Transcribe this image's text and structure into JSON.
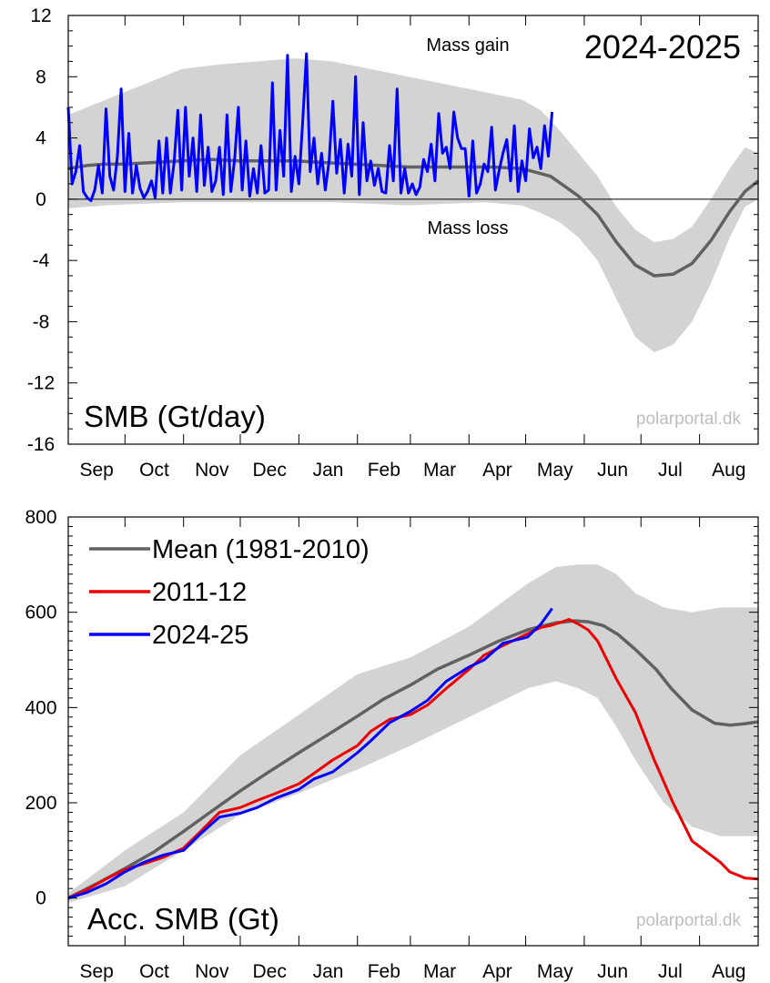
{
  "colors": {
    "band": "#d3d3d3",
    "mean": "#616161",
    "current": "#0000ff",
    "reference": "#ee0000",
    "zero_line": "#000000",
    "watermark": "#bdbdbd"
  },
  "top_panel": {
    "season": "2024-2025",
    "panel_label": "SMB (Gt/day)",
    "gain_label": "Mass gain",
    "loss_label": "Mass loss",
    "watermark": "polarportal.dk"
  },
  "bottom_panel": {
    "panel_label": "Acc. SMB (Gt)",
    "watermark": "polarportal.dk",
    "legend": [
      {
        "label": "Mean (1981-2010)",
        "color": "#616161"
      },
      {
        "label": "2011-12",
        "color": "#ee0000"
      },
      {
        "label": "2024-25",
        "color": "#0000ff"
      }
    ]
  },
  "chart_data": [
    {
      "type": "line",
      "title": "SMB (Gt/day)",
      "season": "2024-2025",
      "x_unit": "day of season (1 Sep = 0)",
      "xlim": [
        0,
        365
      ],
      "month_labels": [
        "Sep",
        "Oct",
        "Nov",
        "Dec",
        "Jan",
        "Feb",
        "Mar",
        "Apr",
        "May",
        "Jun",
        "Jul",
        "Aug"
      ],
      "ylim": [
        -16,
        12
      ],
      "yticks": [
        -16,
        -12,
        -8,
        -4,
        0,
        4,
        8,
        12
      ],
      "zero_line": true,
      "series": [
        {
          "name": "Mean (1981-2010)",
          "x": [
            0,
            10,
            20,
            30,
            45,
            60,
            75,
            90,
            105,
            120,
            135,
            150,
            165,
            180,
            195,
            210,
            225,
            240,
            255,
            262,
            270,
            280,
            290,
            300,
            310,
            320,
            330,
            340,
            350,
            358,
            365
          ],
          "y": [
            2.0,
            2.2,
            2.3,
            2.3,
            2.4,
            2.5,
            2.6,
            2.5,
            2.5,
            2.5,
            2.4,
            2.3,
            2.2,
            2.1,
            2.1,
            2.1,
            2.1,
            2.0,
            1.5,
            0.9,
            0.2,
            -1.0,
            -2.8,
            -4.3,
            -5.0,
            -4.9,
            -4.2,
            -2.7,
            -0.8,
            0.5,
            1.2
          ]
        },
        {
          "name": "2024-25",
          "x": [
            0,
            2,
            4,
            6,
            8,
            10,
            12,
            14,
            16,
            18,
            20,
            22,
            24,
            26,
            28,
            30,
            32,
            34,
            36,
            38,
            40,
            42,
            44,
            46,
            48,
            50,
            52,
            54,
            56,
            58,
            60,
            62,
            64,
            66,
            68,
            70,
            72,
            74,
            76,
            78,
            80,
            82,
            84,
            86,
            88,
            90,
            92,
            94,
            96,
            98,
            100,
            102,
            104,
            106,
            108,
            110,
            112,
            114,
            116,
            118,
            120,
            122,
            124,
            126,
            128,
            130,
            132,
            134,
            136,
            138,
            140,
            142,
            144,
            146,
            148,
            150,
            152,
            154,
            156,
            158,
            160,
            162,
            164,
            166,
            168,
            170,
            172,
            174,
            176,
            178,
            180,
            182,
            184,
            186,
            188,
            190,
            192,
            194,
            196,
            198,
            200,
            202,
            204,
            206,
            208,
            210,
            212,
            214,
            216,
            218,
            220,
            222,
            224,
            226,
            228,
            230,
            232,
            234,
            236,
            238,
            240,
            242,
            244,
            246,
            248,
            250,
            252,
            254,
            256
          ],
          "y": [
            6.0,
            1.0,
            1.8,
            3.5,
            0.5,
            0.1,
            -0.1,
            0.6,
            2.2,
            0.4,
            5.9,
            1.5,
            0.6,
            2.8,
            7.2,
            0.5,
            4.3,
            0.4,
            2.2,
            0.7,
            0.1,
            0.5,
            1.2,
            0.1,
            3.8,
            0.4,
            4.0,
            0.4,
            2.4,
            5.8,
            0.6,
            6.0,
            1.5,
            4.0,
            0.5,
            5.5,
            0.9,
            3.4,
            0.5,
            1.2,
            3.4,
            0.3,
            5.5,
            0.5,
            2.6,
            6.0,
            0.6,
            3.8,
            0.2,
            2.0,
            0.4,
            3.5,
            0.4,
            0.6,
            7.6,
            0.6,
            4.5,
            1.5,
            9.4,
            0.5,
            2.8,
            1.0,
            5.0,
            9.5,
            1.8,
            4.0,
            1.0,
            3.0,
            0.6,
            2.5,
            6.4,
            1.7,
            3.9,
            0.4,
            3.6,
            1.5,
            8.0,
            0.3,
            5.0,
            1.2,
            2.5,
            0.9,
            2.0,
            0.5,
            0.4,
            3.5,
            1.2,
            7.2,
            0.4,
            2.0,
            0.4,
            1.0,
            0.3,
            0.8,
            2.6,
            1.8,
            3.6,
            1.2,
            5.6,
            3.0,
            3.4,
            2.0,
            5.7,
            4.0,
            3.3,
            3.3,
            0.2,
            3.8,
            0.4,
            1.0,
            2.3,
            1.8,
            4.7,
            0.6,
            1.9,
            3.0,
            3.9,
            1.2,
            4.8,
            0.5,
            2.5,
            1.2,
            4.6,
            2.7,
            3.4,
            2.0,
            4.8,
            2.8,
            5.7
          ]
        }
      ],
      "band": {
        "name": "Range",
        "x": [
          0,
          20,
          40,
          60,
          80,
          100,
          120,
          140,
          160,
          180,
          200,
          220,
          240,
          250,
          260,
          270,
          280,
          290,
          300,
          310,
          320,
          330,
          340,
          350,
          358,
          365
        ],
        "upper": [
          5.5,
          6.5,
          7.5,
          8.5,
          8.8,
          9.0,
          9.2,
          9.0,
          8.5,
          8.0,
          7.5,
          7.0,
          6.5,
          5.8,
          4.5,
          3.0,
          1.5,
          -0.5,
          -2.0,
          -2.8,
          -2.6,
          -1.8,
          0.0,
          2.0,
          3.4,
          3.0
        ],
        "lower": [
          -0.6,
          -0.4,
          -0.3,
          -0.2,
          -0.2,
          -0.2,
          -0.2,
          -0.2,
          -0.3,
          -0.4,
          -0.3,
          -0.2,
          -0.4,
          -0.9,
          -1.5,
          -2.5,
          -4.0,
          -6.5,
          -9.0,
          -10.0,
          -9.5,
          -8.0,
          -5.5,
          -2.5,
          -0.5,
          0.0
        ]
      }
    },
    {
      "type": "line",
      "title": "Acc. SMB (Gt)",
      "x_unit": "day of season (1 Sep = 0)",
      "xlim": [
        0,
        365
      ],
      "month_labels": [
        "Sep",
        "Oct",
        "Nov",
        "Dec",
        "Jan",
        "Feb",
        "Mar",
        "Apr",
        "May",
        "Jun",
        "Jul",
        "Aug"
      ],
      "ylim": [
        -100,
        800
      ],
      "yticks": [
        0,
        200,
        400,
        600,
        800
      ],
      "series": [
        {
          "name": "Mean (1981-2010)",
          "x": [
            0,
            15,
            30,
            45,
            61,
            75,
            91,
            105,
            122,
            137,
            153,
            167,
            181,
            195,
            212,
            228,
            243,
            258,
            268,
            275,
            283,
            291,
            300,
            311,
            319,
            330,
            342,
            350,
            358,
            365
          ],
          "y": [
            0,
            30,
            62,
            96,
            140,
            180,
            225,
            262,
            305,
            342,
            382,
            418,
            447,
            480,
            510,
            540,
            563,
            578,
            582,
            580,
            572,
            553,
            522,
            480,
            440,
            395,
            367,
            363,
            366,
            370
          ]
        },
        {
          "name": "2011-12",
          "x": [
            0,
            10,
            20,
            30,
            40,
            50,
            61,
            70,
            80,
            91,
            100,
            110,
            122,
            130,
            140,
            153,
            160,
            170,
            181,
            190,
            200,
            212,
            220,
            230,
            243,
            250,
            255,
            260,
            265,
            270,
            275,
            280,
            290,
            300,
            310,
            320,
            330,
            340,
            345,
            350,
            358,
            365
          ],
          "y": [
            0,
            18,
            40,
            60,
            72,
            85,
            105,
            140,
            180,
            190,
            205,
            220,
            240,
            262,
            290,
            320,
            350,
            375,
            385,
            405,
            440,
            480,
            510,
            530,
            555,
            568,
            572,
            578,
            585,
            575,
            563,
            540,
            460,
            390,
            290,
            200,
            120,
            90,
            75,
            55,
            42,
            40
          ]
        },
        {
          "name": "2024-25",
          "x": [
            0,
            10,
            20,
            30,
            40,
            50,
            61,
            70,
            80,
            91,
            100,
            110,
            122,
            130,
            140,
            153,
            160,
            170,
            181,
            190,
            200,
            212,
            220,
            230,
            243,
            250,
            256
          ],
          "y": [
            0,
            12,
            30,
            55,
            75,
            90,
            100,
            135,
            170,
            178,
            190,
            210,
            228,
            250,
            265,
            305,
            330,
            368,
            392,
            415,
            455,
            485,
            500,
            535,
            548,
            575,
            608
          ]
        }
      ],
      "band": {
        "name": "Range",
        "x": [
          0,
          30,
          61,
          91,
          122,
          153,
          181,
          212,
          243,
          258,
          270,
          280,
          290,
          300,
          315,
          330,
          345,
          365
        ],
        "upper": [
          10,
          100,
          180,
          300,
          385,
          470,
          505,
          570,
          660,
          695,
          700,
          700,
          680,
          640,
          610,
          600,
          610,
          610
        ],
        "lower": [
          -10,
          25,
          100,
          175,
          220,
          270,
          320,
          380,
          440,
          455,
          440,
          420,
          360,
          290,
          200,
          150,
          130,
          130
        ]
      }
    }
  ]
}
